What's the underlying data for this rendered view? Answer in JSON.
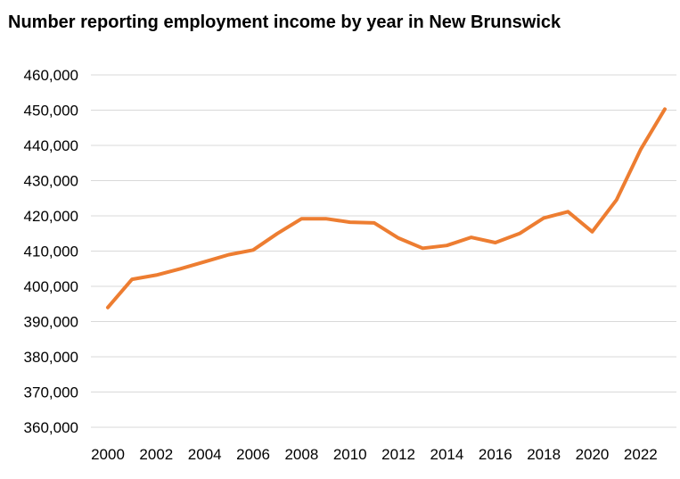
{
  "chart_data": {
    "type": "line",
    "title": "Number reporting employment income by year in New Brunswick",
    "xlabel": "",
    "ylabel": "",
    "x": [
      2000,
      2001,
      2002,
      2003,
      2004,
      2005,
      2006,
      2007,
      2008,
      2009,
      2010,
      2011,
      2012,
      2013,
      2014,
      2015,
      2016,
      2017,
      2018,
      2019,
      2020,
      2021,
      2022,
      2023
    ],
    "x_tick_labels": [
      "2000",
      "2002",
      "2004",
      "2006",
      "2008",
      "2010",
      "2012",
      "2014",
      "2016",
      "2018",
      "2020",
      "2022"
    ],
    "y_tick_labels": [
      "460,000",
      "450,000",
      "440,000",
      "430,000",
      "420,000",
      "410,000",
      "400,000",
      "390,000",
      "380,000",
      "370,000",
      "360,000"
    ],
    "ylim": [
      360000,
      460000
    ],
    "grid": true,
    "legend": "none",
    "series": [
      {
        "values": [
          394000,
          402000,
          403200,
          405000,
          407000,
          409000,
          410300,
          415000,
          419200,
          419200,
          418200,
          418000,
          413700,
          410800,
          411600,
          413900,
          412400,
          415000,
          419400,
          421200,
          415500,
          424500,
          438800,
          450300
        ],
        "color": "#ed7d31"
      }
    ]
  }
}
